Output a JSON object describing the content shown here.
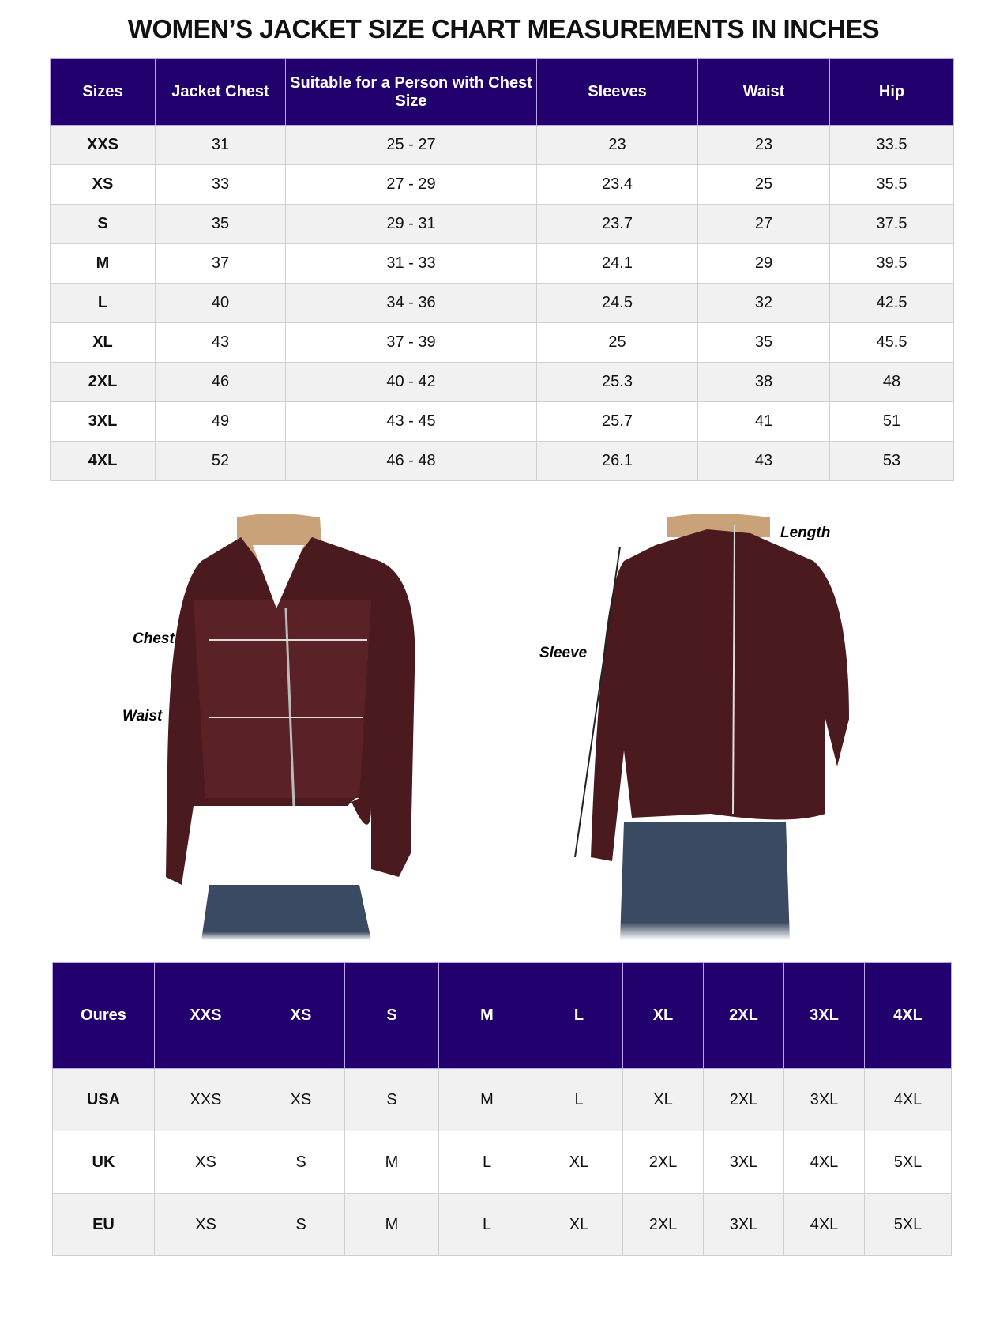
{
  "title": "WOMEN’S JACKET SIZE CHART MEASUREMENTS IN INCHES",
  "colors": {
    "header_bg": "#22006e",
    "header_text": "#ffffff",
    "alt_row": "#f1f1f1",
    "jacket": "#4a1a1e"
  },
  "measurements_table": {
    "headers": [
      "Sizes",
      "Jacket Chest",
      "Suitable for a Person with Chest Size",
      "Sleeves",
      "Waist",
      "Hip"
    ],
    "rows": [
      [
        "XXS",
        "31",
        "25 - 27",
        "23",
        "23",
        "33.5"
      ],
      [
        "XS",
        "33",
        "27 - 29",
        "23.4",
        "25",
        "35.5"
      ],
      [
        "S",
        "35",
        "29 - 31",
        "23.7",
        "27",
        "37.5"
      ],
      [
        "M",
        "37",
        "31 - 33",
        "24.1",
        "29",
        "39.5"
      ],
      [
        "L",
        "40",
        "34 - 36",
        "24.5",
        "32",
        "42.5"
      ],
      [
        "XL",
        "43",
        "37 - 39",
        "25",
        "35",
        "45.5"
      ],
      [
        "2XL",
        "46",
        "40 - 42",
        "25.3",
        "38",
        "48"
      ],
      [
        "3XL",
        "49",
        "43 - 45",
        "25.7",
        "41",
        "51"
      ],
      [
        "4XL",
        "52",
        "46 - 48",
        "26.1",
        "43",
        "53"
      ]
    ]
  },
  "photo_labels": {
    "chest": "Chest",
    "waist": "Waist",
    "sleeve": "Sleeve",
    "length": "Length"
  },
  "conversion_table": {
    "headers": [
      "Oures",
      "XXS",
      "XS",
      "S",
      "M",
      "L",
      "XL",
      "2XL",
      "3XL",
      "4XL"
    ],
    "rows": [
      [
        "USA",
        "XXS",
        "XS",
        "S",
        "M",
        "L",
        "XL",
        "2XL",
        "3XL",
        "4XL"
      ],
      [
        "UK",
        "XS",
        "S",
        "M",
        "L",
        "XL",
        "2XL",
        "3XL",
        "4XL",
        "5XL"
      ],
      [
        "EU",
        "XS",
        "S",
        "M",
        "L",
        "XL",
        "2XL",
        "3XL",
        "4XL",
        "5XL"
      ]
    ]
  }
}
